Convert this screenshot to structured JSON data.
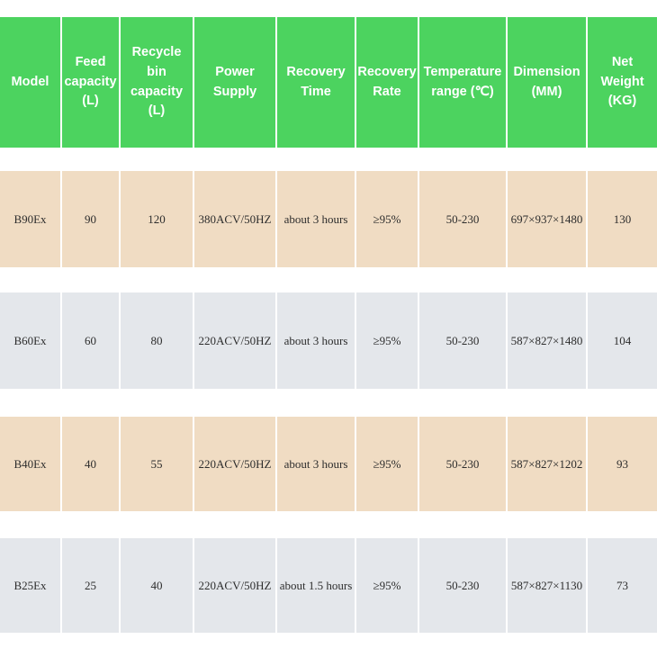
{
  "colors": {
    "page_bg": "#ffffff",
    "header_bg": "#4cd35f",
    "header_text": "#ffffff",
    "row_bg_tan": "#f0dcc3",
    "row_bg_gray": "#e4e7eb",
    "cell_text": "#2d2d2d"
  },
  "chart_data": {
    "type": "table",
    "columns": [
      {
        "key": "model",
        "label": "Model"
      },
      {
        "key": "feed-capacity",
        "label": "Feed capacity (L)"
      },
      {
        "key": "recycle-bin-capacity",
        "label": "Recycle bin capacity (L)"
      },
      {
        "key": "power-supply",
        "label": "Power Supply"
      },
      {
        "key": "recovery-time",
        "label": "Recovery Time"
      },
      {
        "key": "recovery-rate",
        "label": "Recovery Rate"
      },
      {
        "key": "temperature-range",
        "label": "Temperature range (℃)"
      },
      {
        "key": "dimension",
        "label": "Dimension (MM)"
      },
      {
        "key": "net-weight",
        "label": "Net Weight (KG)"
      }
    ],
    "rows": [
      {
        "key": "b90ex",
        "cells": [
          "B90Ex",
          "90",
          "120",
          "380ACV/50HZ",
          "about 3 hours",
          "≥95%",
          "50-230",
          "697×937×1480",
          "130"
        ]
      },
      {
        "key": "b60ex",
        "cells": [
          "B60Ex",
          "60",
          "80",
          "220ACV/50HZ",
          "about 3 hours",
          "≥95%",
          "50-230",
          "587×827×1480",
          "104"
        ]
      },
      {
        "key": "b40ex",
        "cells": [
          "B40Ex",
          "40",
          "55",
          "220ACV/50HZ",
          "about 3 hours",
          "≥95%",
          "50-230",
          "587×827×1202",
          "93"
        ]
      },
      {
        "key": "b25ex",
        "cells": [
          "B25Ex",
          "25",
          "40",
          "220ACV/50HZ",
          "about 1.5 hours",
          "≥95%",
          "50-230",
          "587×827×1130",
          "73"
        ]
      }
    ],
    "layout_hints": {
      "header_position": "top",
      "row_striping": [
        "tan",
        "gray",
        "tan",
        "gray"
      ],
      "grid": "white gaps between cells, no borders"
    }
  }
}
